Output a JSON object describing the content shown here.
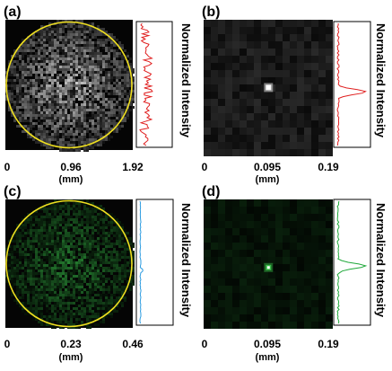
{
  "panels": [
    {
      "label": "(a)",
      "ticks": [
        "0",
        "0.96",
        "1.92"
      ],
      "unit": "(mm)",
      "side_label": "Normalized Intensity",
      "profile_color": "#e02020",
      "speckle_color": "#ffffff",
      "circle": true,
      "profile_type": "speckle"
    },
    {
      "label": "(b)",
      "ticks": [
        "0",
        "0.095",
        "0.19"
      ],
      "unit": "(mm)",
      "side_label": "Normalized Intensity",
      "profile_color": "#e02020",
      "speckle_color": "#ffffff",
      "circle": false,
      "profile_type": "peak"
    },
    {
      "label": "(c)",
      "ticks": [
        "0",
        "0.23",
        "0.46"
      ],
      "unit": "(mm)",
      "side_label": "Normalized Intensity",
      "profile_color": "#2a9be0",
      "speckle_color": "#39c24a",
      "circle": true,
      "profile_type": "flat"
    },
    {
      "label": "(d)",
      "ticks": [
        "0",
        "0.095",
        "0.19"
      ],
      "unit": "(mm)",
      "side_label": "Normalized Intensity",
      "profile_color": "#1fa83a",
      "speckle_color": "#39c24a",
      "circle": false,
      "profile_type": "peak"
    }
  ],
  "circle_color": "#f0e020"
}
